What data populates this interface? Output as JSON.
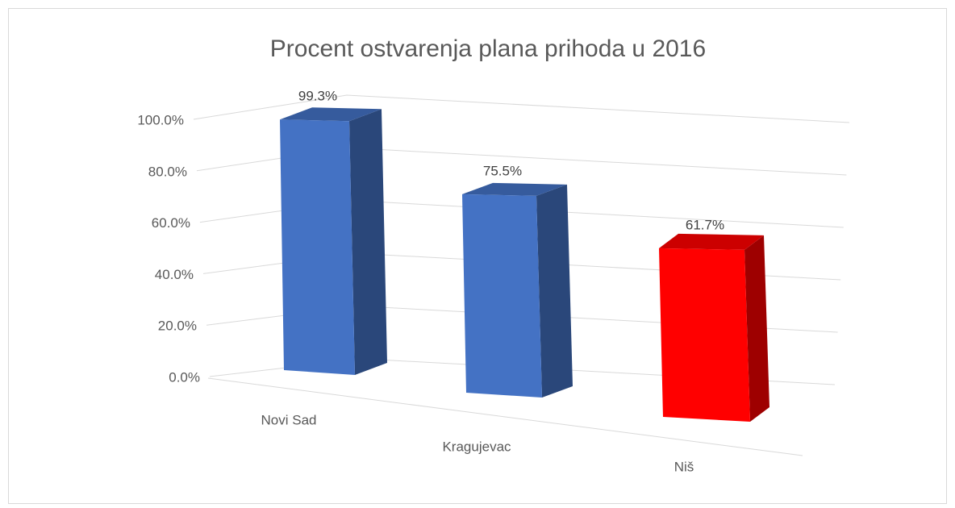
{
  "chart_data": {
    "type": "bar3d",
    "title": "Procent ostvarenja plana prihoda u 2016",
    "categories": [
      "Novi Sad",
      "Kragujevac",
      "Niš"
    ],
    "values": [
      99.3,
      75.5,
      61.7
    ],
    "value_labels": [
      "99.3%",
      "75.5%",
      "61.7%"
    ],
    "colors": [
      "#4472c4",
      "#4472c4",
      "#ff0000"
    ],
    "ylim": [
      0,
      100
    ],
    "yticks": [
      {
        "value": 0,
        "label": "0.0%"
      },
      {
        "value": 20,
        "label": "20.0%"
      },
      {
        "value": 40,
        "label": "40.0%"
      },
      {
        "value": 60,
        "label": "60.0%"
      },
      {
        "value": 80,
        "label": "80.0%"
      },
      {
        "value": 100,
        "label": "100.0%"
      }
    ],
    "grid": true
  }
}
